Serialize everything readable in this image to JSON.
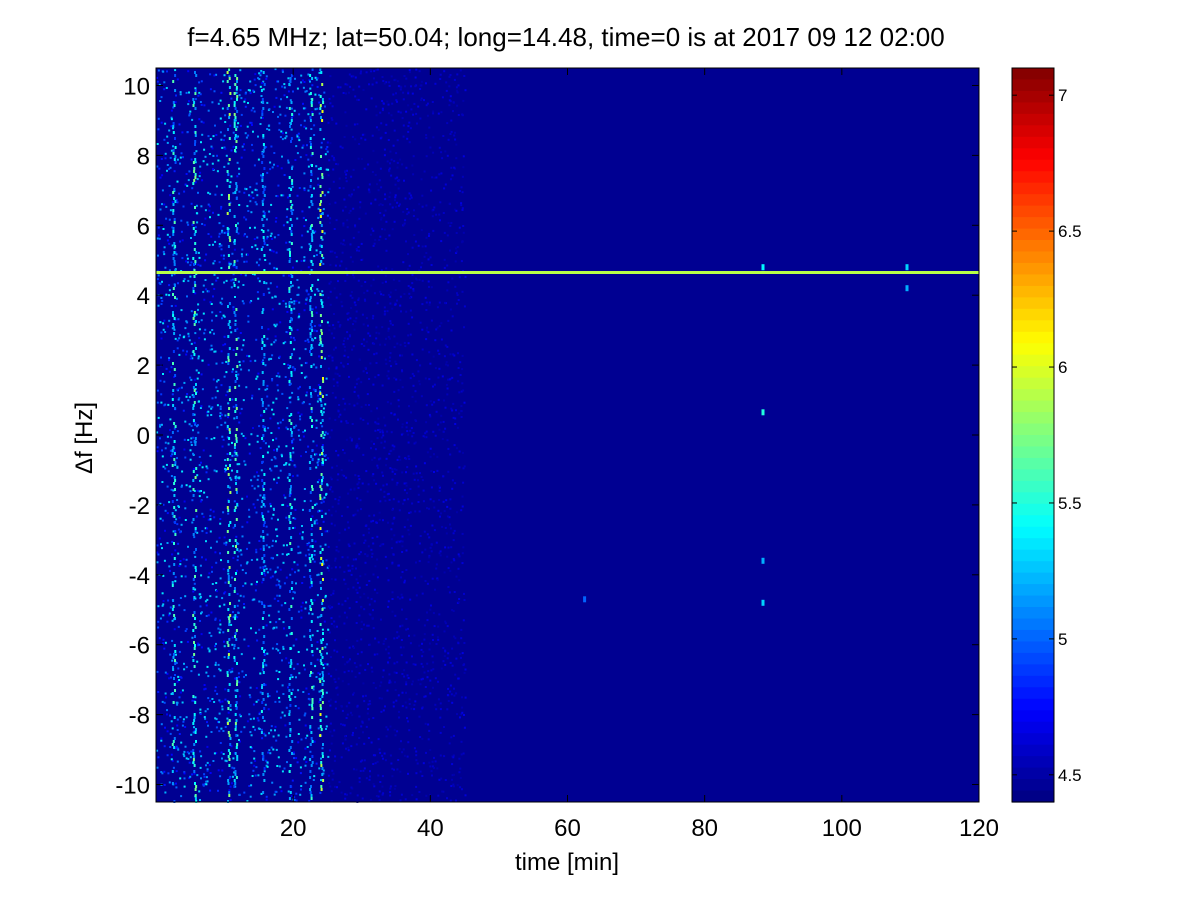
{
  "chart_data": {
    "type": "heatmap",
    "title": "f=4.65 MHz;  lat=50.04; long=14.48, time=0 is at 2017 09 12 02:00",
    "xlabel": "time [min]",
    "ylabel": "Δf [Hz]",
    "xlim": [
      0,
      120
    ],
    "ylim": [
      -10.5,
      10.5
    ],
    "x_ticks": [
      {
        "value": 20,
        "label": "20"
      },
      {
        "value": 40,
        "label": "40"
      },
      {
        "value": 60,
        "label": "60"
      },
      {
        "value": 80,
        "label": "80"
      },
      {
        "value": 100,
        "label": "100"
      },
      {
        "value": 120,
        "label": "120"
      }
    ],
    "y_ticks": [
      {
        "value": 10,
        "label": "10"
      },
      {
        "value": 8,
        "label": "8"
      },
      {
        "value": 6,
        "label": "6"
      },
      {
        "value": 4,
        "label": "4"
      },
      {
        "value": 2,
        "label": "2"
      },
      {
        "value": 0,
        "label": "0"
      },
      {
        "value": -2,
        "label": "-2"
      },
      {
        "value": -4,
        "label": "-4"
      },
      {
        "value": -6,
        "label": "-6"
      },
      {
        "value": -8,
        "label": "-8"
      },
      {
        "value": -10,
        "label": "-10"
      }
    ],
    "colorbar": {
      "colormap": "jet",
      "range": [
        4.4,
        7.1
      ],
      "ticks": [
        {
          "value": 7,
          "label": "7"
        },
        {
          "value": 6.5,
          "label": "6.5"
        },
        {
          "value": 6,
          "label": "6"
        },
        {
          "value": 5.5,
          "label": "5.5"
        },
        {
          "value": 5,
          "label": "5"
        },
        {
          "value": 4.5,
          "label": "4.5"
        }
      ]
    },
    "background_value": 4.45,
    "noise_regions": [
      {
        "t_start": 0,
        "t_end": 25,
        "level": 5.1
      },
      {
        "t_start": 25,
        "t_end": 45,
        "level": 4.6
      }
    ],
    "noise_stripes": [
      {
        "t": 2.5,
        "level": 5.3
      },
      {
        "t": 5.5,
        "level": 5.4
      },
      {
        "t": 10.5,
        "level": 5.5
      },
      {
        "t": 11.5,
        "level": 5.4
      },
      {
        "t": 15.5,
        "level": 5.2
      },
      {
        "t": 19.5,
        "level": 5.3
      },
      {
        "t": 22.5,
        "level": 5.3
      },
      {
        "t": 24,
        "level": 5.6
      }
    ],
    "carrier_line": {
      "delta_f": 4.65,
      "t_start": 0,
      "t_end": 120,
      "level": 5.9
    },
    "spots": [
      {
        "t": 88.5,
        "delta_f": 4.8,
        "level": 5.4
      },
      {
        "t": 109.5,
        "delta_f": 4.2,
        "level": 5.2
      },
      {
        "t": 109.5,
        "delta_f": 4.8,
        "level": 5.3
      },
      {
        "t": 88.5,
        "delta_f": 0.65,
        "level": 5.5
      },
      {
        "t": 88.5,
        "delta_f": -3.6,
        "level": 5.2
      },
      {
        "t": 88.5,
        "delta_f": -4.8,
        "level": 5.3
      },
      {
        "t": 62.5,
        "delta_f": -4.7,
        "level": 5.0
      }
    ]
  }
}
